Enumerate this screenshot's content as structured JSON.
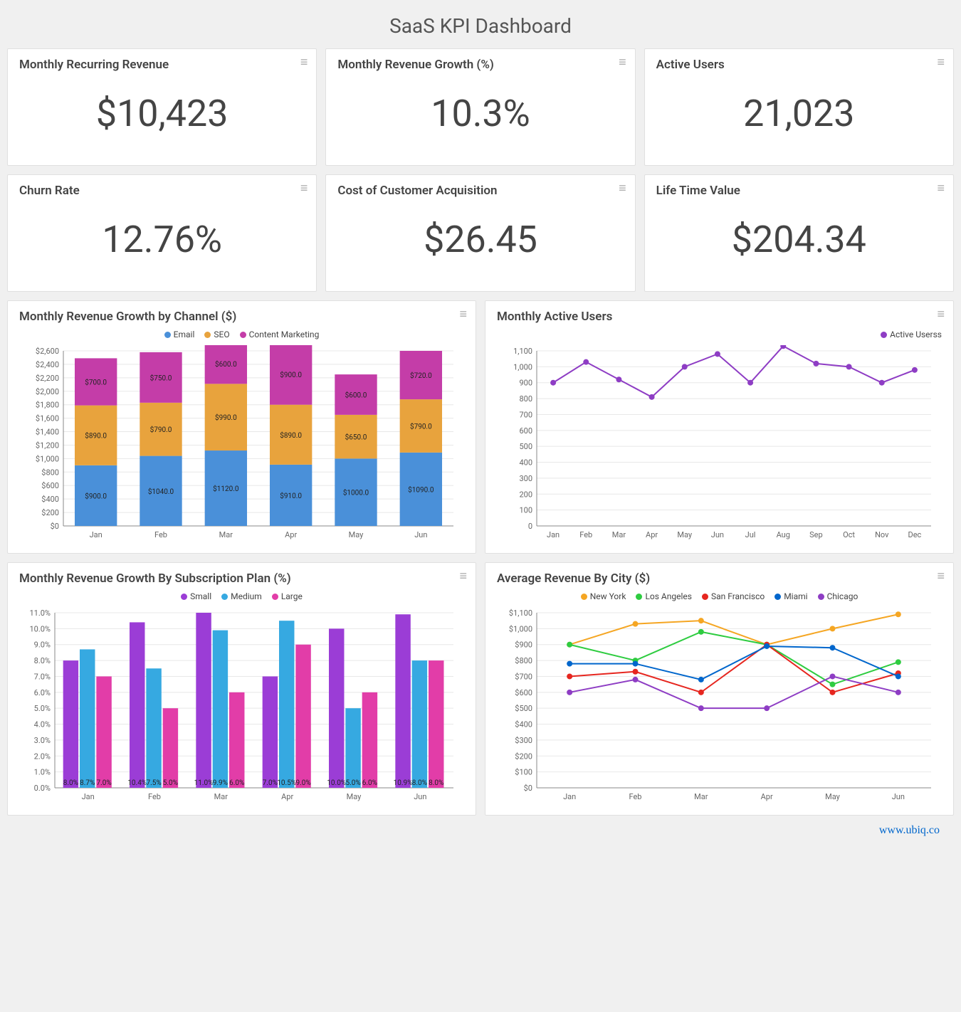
{
  "title": "SaaS KPI Dashboard",
  "watermark": "www.ubiq.co",
  "kpis": [
    {
      "label": "Monthly Recurring Revenue",
      "value": "$10,423"
    },
    {
      "label": "Monthly Revenue Growth (%)",
      "value": "10.3%"
    },
    {
      "label": "Active Users",
      "value": "21,023"
    },
    {
      "label": "Churn Rate",
      "value": "12.76%"
    },
    {
      "label": "Cost of Customer Acquisition",
      "value": "$26.45"
    },
    {
      "label": "Life Time Value",
      "value": "$204.34"
    }
  ],
  "revenue_by_channel": {
    "title": "Monthly Revenue Growth by Channel ($)",
    "type": "stacked-bar",
    "categories": [
      "Jan",
      "Feb",
      "Mar",
      "Apr",
      "May",
      "Jun"
    ],
    "series": [
      {
        "name": "Email",
        "color": "#4a90d9",
        "values": [
          900,
          1040,
          1120,
          910,
          1000,
          1090
        ]
      },
      {
        "name": "SEO",
        "color": "#e8a33d",
        "values": [
          890,
          790,
          990,
          890,
          650,
          790
        ]
      },
      {
        "name": "Content Marketing",
        "color": "#c43da8",
        "values": [
          700,
          750,
          600,
          900,
          600,
          720
        ]
      }
    ],
    "ylim": [
      0,
      2600
    ],
    "ytick_step": 200,
    "y_prefix": "$",
    "bar_label_prefix": "$",
    "bar_label_suffix": ".0",
    "grid_color": "#e8e8e8",
    "axis_color": "#888"
  },
  "active_users_chart": {
    "title": "Monthly Active Users",
    "type": "line",
    "categories": [
      "Jan",
      "Feb",
      "Mar",
      "Apr",
      "May",
      "Jun",
      "Jul",
      "Aug",
      "Sep",
      "Oct",
      "Nov",
      "Dec"
    ],
    "series": [
      {
        "name": "Active Userss",
        "color": "#8e3dc4",
        "values": [
          900,
          1030,
          920,
          810,
          1000,
          1080,
          900,
          1130,
          1020,
          1000,
          900,
          980
        ]
      }
    ],
    "ylim": [
      0,
      1100
    ],
    "ytick_step": 100,
    "grid_color": "#e8e8e8",
    "axis_color": "#888",
    "marker": "circle",
    "marker_size": 4
  },
  "revenue_by_plan": {
    "title": "Monthly Revenue Growth By Subscription Plan (%)",
    "type": "grouped-bar",
    "categories": [
      "Jan",
      "Feb",
      "Mar",
      "Apr",
      "May",
      "Jun"
    ],
    "series": [
      {
        "name": "Small",
        "color": "#9b3dd6",
        "values": [
          8.0,
          10.4,
          11.0,
          7.0,
          10.0,
          10.9
        ]
      },
      {
        "name": "Medium",
        "color": "#36a9e1",
        "values": [
          8.7,
          7.5,
          9.9,
          10.5,
          5.0,
          8.0
        ]
      },
      {
        "name": "Large",
        "color": "#e23da8",
        "values": [
          7.0,
          5.0,
          6.0,
          9.0,
          6.0,
          8.0
        ]
      }
    ],
    "ylim": [
      0,
      11
    ],
    "ytick_step": 1,
    "y_suffix": ".0%",
    "bar_label_suffix": "%",
    "grid_color": "#e8e8e8",
    "axis_color": "#888"
  },
  "revenue_by_city": {
    "title": "Average Revenue By City ($)",
    "type": "multi-line",
    "categories": [
      "Jan",
      "Feb",
      "Mar",
      "Apr",
      "May",
      "Jun"
    ],
    "series": [
      {
        "name": "New York",
        "color": "#f5a623",
        "values": [
          900,
          1030,
          1050,
          900,
          1000,
          1090
        ]
      },
      {
        "name": "Los Angeles",
        "color": "#2ecc40",
        "values": [
          900,
          800,
          980,
          900,
          650,
          790
        ]
      },
      {
        "name": "San Francisco",
        "color": "#e6261f",
        "values": [
          700,
          730,
          600,
          900,
          600,
          720
        ]
      },
      {
        "name": "Miami",
        "color": "#0066cc",
        "values": [
          780,
          780,
          680,
          890,
          880,
          700
        ]
      },
      {
        "name": "Chicago",
        "color": "#8e3dc4",
        "values": [
          600,
          680,
          500,
          500,
          700,
          600
        ]
      }
    ],
    "ylim": [
      0,
      1100
    ],
    "ytick_step": 100,
    "y_prefix": "$",
    "grid_color": "#e8e8e8",
    "axis_color": "#888",
    "marker": "circle",
    "marker_size": 4
  }
}
